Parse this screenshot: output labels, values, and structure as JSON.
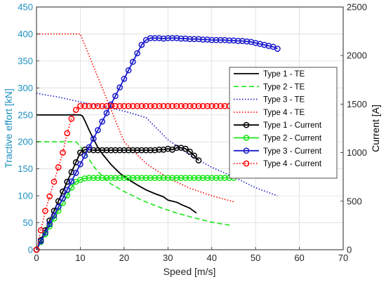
{
  "chart_data": {
    "type": "line",
    "xlabel": "Speed [m/s]",
    "ylabel_left": "Tractive effort [kN]",
    "ylabel_right": "Current [A]",
    "xlim": [
      0,
      70
    ],
    "ylim_left": [
      0,
      450
    ],
    "ylim_right": [
      0,
      2500
    ],
    "x_ticks": [
      "0",
      "10",
      "20",
      "30",
      "40",
      "50",
      "60",
      "70"
    ],
    "y_left_ticks": [
      "0",
      "50",
      "100",
      "150",
      "200",
      "250",
      "300",
      "350",
      "400",
      "450"
    ],
    "y_right_ticks": [
      "0",
      "500",
      "1000",
      "1500",
      "2000",
      "2500"
    ],
    "grid": true,
    "legend_position": "right-center",
    "colors": {
      "left_axis": "#1a8fbf",
      "right_axis": "#000000",
      "black": "#000000",
      "green": "#19e619",
      "blue": "#1a1acc",
      "red": "#ff0000"
    },
    "series": [
      {
        "name": "Type 1 - TE",
        "axis": "left",
        "color": "#000000",
        "style": "solid",
        "marker": false,
        "x": [
          0,
          10,
          10.5,
          11,
          12,
          13,
          14,
          15,
          17,
          19,
          21,
          23,
          25,
          27,
          29,
          30,
          32,
          33,
          35,
          36.5
        ],
        "y": [
          250,
          250,
          248,
          240,
          222,
          205,
          190,
          178,
          158,
          142,
          130,
          120,
          111,
          104,
          98,
          92,
          88,
          84,
          77,
          68
        ]
      },
      {
        "name": "Type 2 - TE",
        "axis": "left",
        "color": "#19e619",
        "style": "dashed",
        "marker": false,
        "x": [
          0,
          9,
          10,
          11,
          12,
          13,
          14,
          15,
          17,
          20,
          24,
          28,
          32,
          36,
          40,
          44.5
        ],
        "y": [
          200,
          200,
          192,
          180,
          168,
          155,
          145,
          137,
          122,
          108,
          92,
          79,
          68,
          59,
          51,
          45
        ]
      },
      {
        "name": "Type 3 - TE",
        "axis": "left",
        "color": "#1a1acc",
        "style": "dotted",
        "marker": false,
        "x": [
          0,
          5,
          10,
          15,
          20,
          25,
          30,
          35,
          40,
          45,
          50,
          55
        ],
        "y": [
          290,
          283,
          274,
          266,
          257,
          245,
          204,
          175,
          153,
          135,
          115,
          100
        ]
      },
      {
        "name": "Type 4 - TE",
        "axis": "left",
        "color": "#ff0000",
        "style": "dotted",
        "marker": false,
        "x": [
          0,
          10,
          11,
          12,
          14,
          16,
          18,
          20,
          25,
          30,
          35,
          40,
          45
        ],
        "y": [
          400,
          400,
          380,
          360,
          320,
          280,
          240,
          200,
          160,
          133,
          114,
          100,
          89
        ]
      },
      {
        "name": "Type 1 - Current",
        "axis": "right",
        "color": "#000000",
        "style": "solid",
        "marker": true,
        "x": [
          0,
          1,
          2,
          3,
          4,
          5,
          6,
          7,
          8,
          9,
          10,
          11,
          12,
          13,
          14,
          15,
          16,
          17,
          18,
          19,
          20,
          21,
          22,
          23,
          24,
          25,
          26,
          27,
          28,
          29,
          30,
          31,
          32,
          33,
          34,
          35,
          36,
          37
        ],
        "y": [
          0,
          100,
          200,
          300,
          400,
          500,
          600,
          700,
          800,
          900,
          1000,
          1030,
          1030,
          1025,
          1025,
          1025,
          1025,
          1025,
          1025,
          1025,
          1025,
          1025,
          1025,
          1025,
          1025,
          1025,
          1025,
          1025,
          1030,
          1030,
          1040,
          1030,
          1050,
          1050,
          1040,
          1010,
          970,
          920
        ]
      },
      {
        "name": "Type 2 - Current",
        "axis": "right",
        "color": "#19e619",
        "style": "solid",
        "marker": true,
        "x": [
          0,
          1,
          2,
          3,
          4,
          5,
          6,
          7,
          8,
          9,
          10,
          11,
          12,
          13,
          14,
          15,
          16,
          17,
          18,
          19,
          20,
          21,
          22,
          23,
          24,
          25,
          26,
          27,
          28,
          29,
          30,
          31,
          32,
          33,
          34,
          35,
          36,
          37,
          38,
          39,
          40,
          41,
          42,
          43,
          44,
          45
        ],
        "y": [
          0,
          80,
          160,
          240,
          320,
          400,
          480,
          560,
          640,
          700,
          720,
          735,
          740,
          740,
          740,
          740,
          740,
          740,
          740,
          740,
          740,
          740,
          740,
          740,
          740,
          740,
          740,
          740,
          740,
          740,
          740,
          740,
          740,
          740,
          740,
          740,
          740,
          740,
          740,
          740,
          740,
          740,
          740,
          740,
          740,
          740
        ]
      },
      {
        "name": "Type 3 - Current",
        "axis": "right",
        "color": "#1a1acc",
        "style": "solid",
        "marker": true,
        "x": [
          0,
          1,
          2,
          3,
          4,
          5,
          6,
          7,
          8,
          9,
          10,
          11,
          12,
          13,
          14,
          15,
          16,
          17,
          18,
          19,
          20,
          21,
          22,
          23,
          24,
          25,
          26,
          27,
          28,
          29,
          30,
          31,
          32,
          33,
          34,
          35,
          36,
          37,
          38,
          39,
          40,
          41,
          42,
          43,
          44,
          45,
          46,
          47,
          48,
          49,
          50,
          51,
          52,
          53,
          54,
          55
        ],
        "y": [
          0,
          88,
          176,
          264,
          352,
          440,
          528,
          616,
          704,
          792,
          880,
          968,
          1056,
          1144,
          1232,
          1320,
          1408,
          1496,
          1584,
          1672,
          1760,
          1848,
          1936,
          2024,
          2110,
          2160,
          2180,
          2180,
          2180,
          2175,
          2180,
          2180,
          2180,
          2175,
          2175,
          2170,
          2170,
          2170,
          2165,
          2165,
          2160,
          2160,
          2160,
          2160,
          2155,
          2155,
          2150,
          2150,
          2145,
          2140,
          2130,
          2120,
          2110,
          2100,
          2090,
          2070
        ]
      },
      {
        "name": "Type 4 - Current",
        "axis": "right",
        "color": "#ff0000",
        "style": "dotted",
        "marker": true,
        "x": [
          0,
          1,
          2,
          3,
          4,
          5,
          6,
          7,
          8,
          9,
          10,
          11,
          12,
          13,
          14,
          15,
          16,
          17,
          18,
          19,
          20,
          21,
          22,
          23,
          24,
          25,
          26,
          27,
          28,
          29,
          30,
          31,
          32,
          33,
          34,
          35,
          36,
          37,
          38,
          39,
          40,
          41,
          42,
          43,
          44,
          45
        ],
        "y": [
          0,
          200,
          400,
          550,
          700,
          850,
          1000,
          1200,
          1350,
          1440,
          1480,
          1480,
          1480,
          1480,
          1480,
          1480,
          1480,
          1480,
          1480,
          1480,
          1480,
          1480,
          1480,
          1480,
          1480,
          1480,
          1480,
          1480,
          1480,
          1480,
          1480,
          1480,
          1480,
          1480,
          1480,
          1480,
          1480,
          1480,
          1480,
          1480,
          1480,
          1480,
          1480,
          1480,
          1480,
          1480
        ]
      }
    ]
  }
}
